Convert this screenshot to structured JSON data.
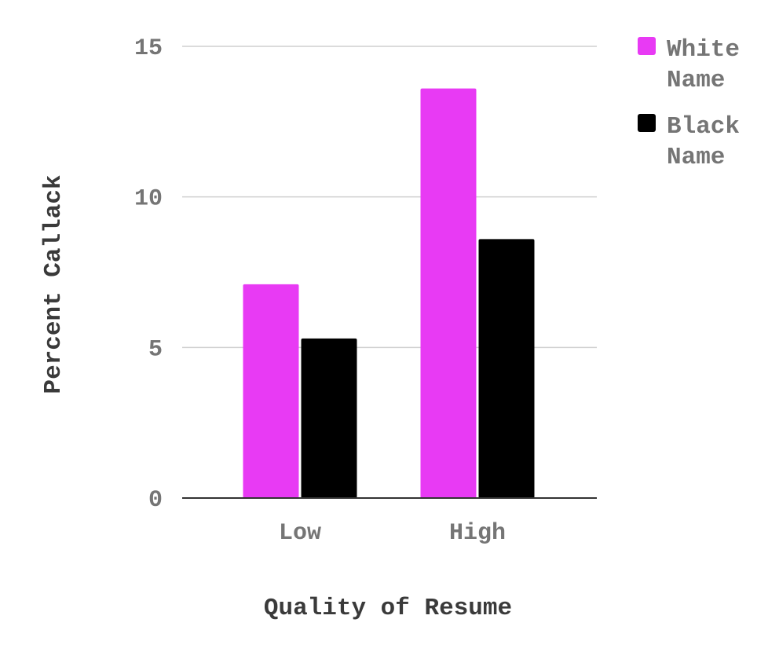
{
  "chart_data": {
    "type": "bar",
    "title": "",
    "xlabel": "Quality of Resume",
    "ylabel": "Percent Callack",
    "categories": [
      "Low",
      "High"
    ],
    "series": [
      {
        "name": "White Name",
        "values": [
          7.1,
          13.6
        ],
        "color": "#e83af4"
      },
      {
        "name": "Black Name",
        "values": [
          5.3,
          8.6
        ],
        "color": "#000000"
      }
    ],
    "ylim": [
      0,
      15
    ],
    "yticks": [
      0,
      5,
      10,
      15
    ],
    "grid": true,
    "legend": {
      "position": "top-right"
    }
  }
}
